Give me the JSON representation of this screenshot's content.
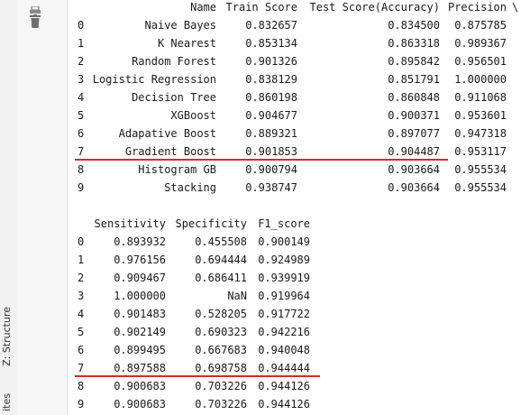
{
  "toolwindow": {
    "structure_label": "Z: Structure",
    "favorites_label": "ites"
  },
  "table1": {
    "headers": {
      "name": "Name",
      "train": "Train Score",
      "test": "Test Score(Accuracy)",
      "precision": "Precision",
      "overflow": "\\"
    },
    "rows": [
      {
        "idx": "0",
        "name": "Naive Bayes",
        "train": "0.832657",
        "test": "0.834500",
        "precision": "0.875785"
      },
      {
        "idx": "1",
        "name": "K Nearest",
        "train": "0.853134",
        "test": "0.863318",
        "precision": "0.989367"
      },
      {
        "idx": "2",
        "name": "Random Forest",
        "train": "0.901326",
        "test": "0.895842",
        "precision": "0.956501"
      },
      {
        "idx": "3",
        "name": "Logistic Regression",
        "train": "0.838129",
        "test": "0.851791",
        "precision": "1.000000"
      },
      {
        "idx": "4",
        "name": "Decision Tree",
        "train": "0.860198",
        "test": "0.860848",
        "precision": "0.911068"
      },
      {
        "idx": "5",
        "name": "XGBoost",
        "train": "0.904677",
        "test": "0.900371",
        "precision": "0.953601"
      },
      {
        "idx": "6",
        "name": "Adapative Boost",
        "train": "0.889321",
        "test": "0.897077",
        "precision": "0.947318"
      },
      {
        "idx": "7",
        "name": "Gradient Boost",
        "train": "0.901853",
        "test": "0.904487",
        "precision": "0.953117"
      },
      {
        "idx": "8",
        "name": "Histogram GB",
        "train": "0.900794",
        "test": "0.903664",
        "precision": "0.955534"
      },
      {
        "idx": "9",
        "name": "Stacking",
        "train": "0.938747",
        "test": "0.903664",
        "precision": "0.955534"
      }
    ]
  },
  "table2": {
    "headers": {
      "sensitivity": "Sensitivity",
      "specificity": "Specificity",
      "f1": "F1_score"
    },
    "rows": [
      {
        "idx": "0",
        "sensitivity": "0.893932",
        "specificity": "0.455508",
        "f1": "0.900149"
      },
      {
        "idx": "1",
        "sensitivity": "0.976156",
        "specificity": "0.694444",
        "f1": "0.924989"
      },
      {
        "idx": "2",
        "sensitivity": "0.909467",
        "specificity": "0.686411",
        "f1": "0.939919"
      },
      {
        "idx": "3",
        "sensitivity": "1.000000",
        "specificity": "NaN",
        "f1": "0.919964"
      },
      {
        "idx": "4",
        "sensitivity": "0.901483",
        "specificity": "0.528205",
        "f1": "0.917722"
      },
      {
        "idx": "5",
        "sensitivity": "0.902149",
        "specificity": "0.690323",
        "f1": "0.942216"
      },
      {
        "idx": "6",
        "sensitivity": "0.899495",
        "specificity": "0.667683",
        "f1": "0.940048"
      },
      {
        "idx": "7",
        "sensitivity": "0.897588",
        "specificity": "0.698758",
        "f1": "0.944444"
      },
      {
        "idx": "8",
        "sensitivity": "0.900683",
        "specificity": "0.703226",
        "f1": "0.944126"
      },
      {
        "idx": "9",
        "sensitivity": "0.900683",
        "specificity": "0.703226",
        "f1": "0.944126"
      }
    ]
  },
  "colors": {
    "highlight": "#d42a2a"
  }
}
